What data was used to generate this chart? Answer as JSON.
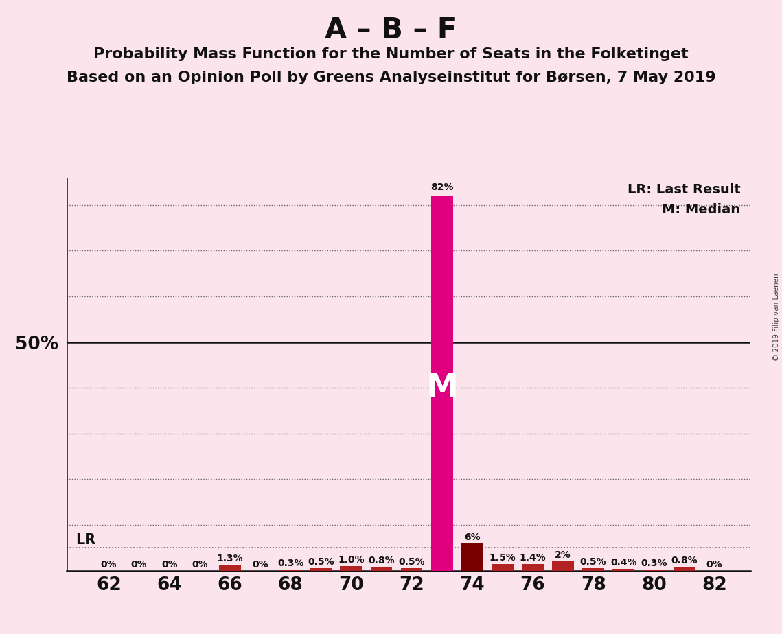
{
  "title1": "A – B – F",
  "title2": "Probability Mass Function for the Number of Seats in the Folketinget",
  "title3": "Based on an Opinion Poll by Greens Analyseinstitut for Børsen, 7 May 2019",
  "copyright": "© 2019 Filip van Laenen",
  "background_color": "#fce4ec",
  "seats": [
    62,
    63,
    64,
    65,
    66,
    67,
    68,
    69,
    70,
    71,
    72,
    73,
    74,
    75,
    76,
    77,
    78,
    79,
    80,
    81,
    82
  ],
  "probabilities": [
    0.0,
    0.0,
    0.0,
    0.0,
    1.3,
    0.0,
    0.3,
    0.5,
    1.0,
    0.8,
    0.5,
    82.0,
    6.0,
    1.5,
    1.4,
    2.0,
    0.5,
    0.4,
    0.3,
    0.8,
    0.0
  ],
  "prob_labels": [
    "0%",
    "0%",
    "0%",
    "0%",
    "1.3%",
    "0%",
    "0.3%",
    "0.5%",
    "1.0%",
    "0.8%",
    "0.5%",
    "82%",
    "6%",
    "1.5%",
    "1.4%",
    "2%",
    "0.5%",
    "0.4%",
    "0.3%",
    "0.8%",
    "0%"
  ],
  "bar_colors": [
    "#f8c8d4",
    "#f8c8d4",
    "#f8c8d4",
    "#f8c8d4",
    "#b22222",
    "#f8c8d4",
    "#b22222",
    "#b22222",
    "#b22222",
    "#b22222",
    "#b22222",
    "#e0007f",
    "#7a0000",
    "#b22222",
    "#b22222",
    "#b22222",
    "#b22222",
    "#b22222",
    "#b22222",
    "#b22222",
    "#f8c8d4"
  ],
  "median_seat": 73,
  "lr_value": 5.0,
  "lr_label": "LR",
  "median_label": "M",
  "legend_lr": "LR: Last Result",
  "legend_m": "M: Median",
  "ylim_max": 86,
  "ytick_50_label": "50%",
  "xtick_positions": [
    62,
    64,
    66,
    68,
    70,
    72,
    74,
    76,
    78,
    80,
    82
  ],
  "bar_width": 0.72,
  "axis_color": "#111111",
  "dotted_line_color": "#666666",
  "fifty_line_color": "#111111",
  "grid_lines": [
    10,
    20,
    30,
    40,
    60,
    70,
    80
  ],
  "xlim_left": 60.6,
  "xlim_right": 83.2
}
